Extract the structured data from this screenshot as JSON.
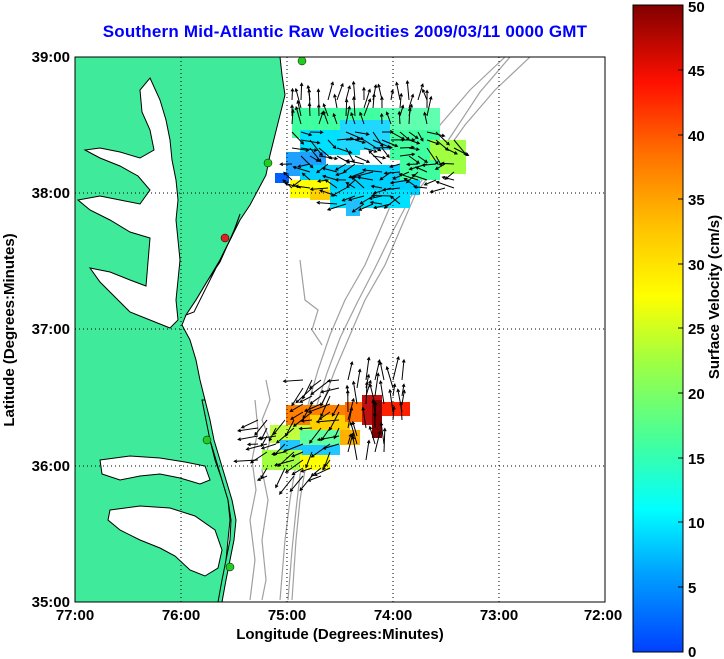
{
  "title": "Southern Mid-Atlantic Raw Velocities 2009/03/11 0000 GMT",
  "x_axis": {
    "label": "Longitude (Degrees:Minutes)",
    "ticks": [
      "77:00",
      "76:00",
      "75:00",
      "74:00",
      "73:00",
      "72:00"
    ],
    "tick_values": [
      77,
      76,
      75,
      74,
      73,
      72
    ]
  },
  "y_axis": {
    "label": "Latitude (Degrees:Minutes)",
    "ticks": [
      "39:00",
      "38:00",
      "37:00",
      "36:00",
      "35:00"
    ],
    "tick_values": [
      39,
      38,
      37,
      36,
      35
    ]
  },
  "colorbar": {
    "label": "Surface Velocity (cm/s)",
    "ticks": [
      "50",
      "45",
      "40",
      "35",
      "30",
      "25",
      "20",
      "15",
      "10",
      "5",
      "0"
    ],
    "range": [
      0,
      50
    ]
  },
  "colors": {
    "land": "#3fea9a",
    "coastline": "#000000",
    "title": "#0000ff",
    "isobath": "#a0a0a0",
    "station_green": "#22cc22",
    "station_red": "#dd2222"
  },
  "grid": "dotted",
  "chart_data": {
    "type": "quiver",
    "x_range_lon_west": [
      77,
      72
    ],
    "y_range_lat_north": [
      35,
      39
    ],
    "clusters": [
      {
        "name_hint": "northern",
        "lon_west": [
          74.4,
          75.0
        ],
        "lat_north": [
          37.9,
          38.65
        ],
        "typical_speed_cm_s": 12
      },
      {
        "name_hint": "southern",
        "lon_west": [
          74.1,
          75.2
        ],
        "lat_north": [
          35.8,
          36.6
        ],
        "typical_speed_cm_s": 22
      }
    ],
    "stations": [
      {
        "lon_west": 74.9,
        "lat_north": 39.0,
        "color": "green"
      },
      {
        "lon_west": 75.15,
        "lat_north": 38.23,
        "color": "green"
      },
      {
        "lon_west": 75.5,
        "lat_north": 37.7,
        "color": "red"
      },
      {
        "lon_west": 75.7,
        "lat_north": 36.2,
        "color": "green"
      },
      {
        "lon_west": 75.45,
        "lat_north": 35.25,
        "color": "green"
      }
    ]
  }
}
